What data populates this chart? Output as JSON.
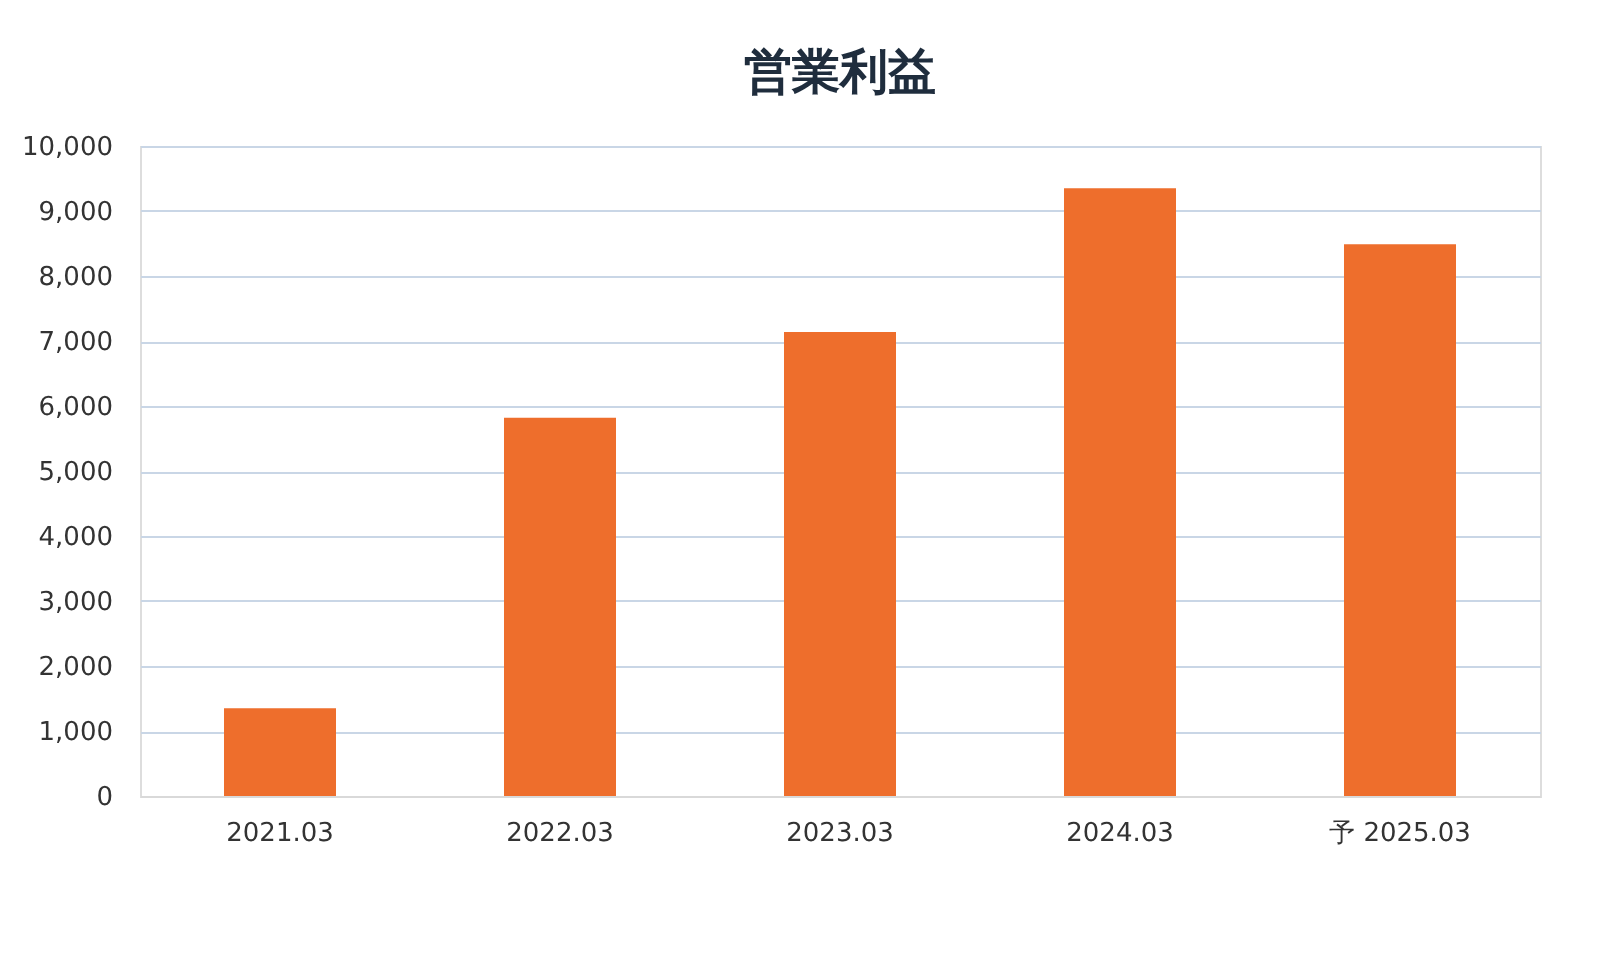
{
  "chart_data": {
    "type": "bar",
    "title": "営業利益",
    "categories": [
      "2021.03",
      "2022.03",
      "2023.03",
      "2024.03",
      "予 2025.03"
    ],
    "values": [
      1350,
      5820,
      7140,
      9350,
      8490
    ],
    "color": "#ee6e2c",
    "ylim": [
      0,
      10000
    ],
    "yticks": [
      {
        "value": 0,
        "label": "0"
      },
      {
        "value": 1000,
        "label": "1,000"
      },
      {
        "value": 2000,
        "label": "2,000"
      },
      {
        "value": 3000,
        "label": "3,000"
      },
      {
        "value": 4000,
        "label": "4,000"
      },
      {
        "value": 5000,
        "label": "5,000"
      },
      {
        "value": 6000,
        "label": "6,000"
      },
      {
        "value": 7000,
        "label": "7,000"
      },
      {
        "value": 8000,
        "label": "8,000"
      },
      {
        "value": 9000,
        "label": "9,000"
      },
      {
        "value": 10000,
        "label": "10,000"
      }
    ],
    "grid": "y"
  }
}
